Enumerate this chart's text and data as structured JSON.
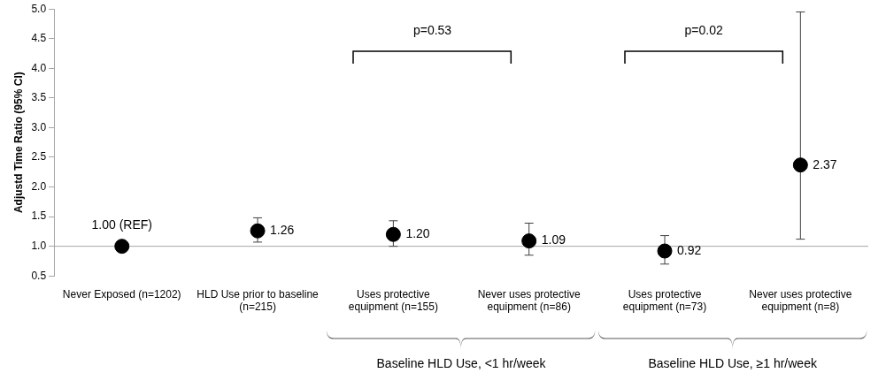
{
  "chart_data": {
    "type": "scatter",
    "ylabel": "Adjustd Time Ratio (95% CI)",
    "categories": [
      "Never Exposed (n=1202)",
      "HLD Use prior to baseline (n=215)",
      "Uses protective equipment (n=155)",
      "Never uses protective equipment (n=86)",
      "Uses protective equipment (n=73)",
      "Never uses protective equipment (n=8)"
    ],
    "series": [
      {
        "color": "#000000",
        "values": [
          1.0,
          1.26,
          1.2,
          1.09,
          0.92,
          2.37
        ],
        "errors": [
          null,
          [
            1.07,
            1.48
          ],
          [
            1.0,
            1.43
          ],
          [
            0.85,
            1.39
          ],
          [
            0.7,
            1.18
          ],
          [
            1.12,
            4.95
          ]
        ],
        "value_labels": [
          "1.00 (REF)",
          "1.26",
          "1.20",
          "1.09",
          "0.92",
          "2.37"
        ]
      }
    ],
    "ylim": [
      0.5,
      5.0
    ],
    "yticks": [
      {
        "value": 0.5,
        "label": "0.5"
      },
      {
        "value": 1,
        "label": "1.0"
      },
      {
        "value": 1.5,
        "label": "1.5"
      },
      {
        "value": 2,
        "label": "2.0"
      },
      {
        "value": 2.5,
        "label": "2.5"
      },
      {
        "value": 3,
        "label": "3.0"
      },
      {
        "value": 3.5,
        "label": "3.5"
      },
      {
        "value": 4,
        "label": "4.0"
      },
      {
        "value": 4.5,
        "label": "4.5"
      },
      {
        "value": 5,
        "label": "5.0"
      }
    ],
    "ref_lines": [
      {
        "axis": "y",
        "value": 1,
        "color": "#a6a6a6"
      }
    ],
    "annotations": [
      "p=0.53",
      "p=0.02",
      "Baseline HLD Use, <1 hr/week",
      "Baseline HLD Use, ≥1 hr/week"
    ],
    "grid": false,
    "legend": false,
    "marker": "circle"
  }
}
